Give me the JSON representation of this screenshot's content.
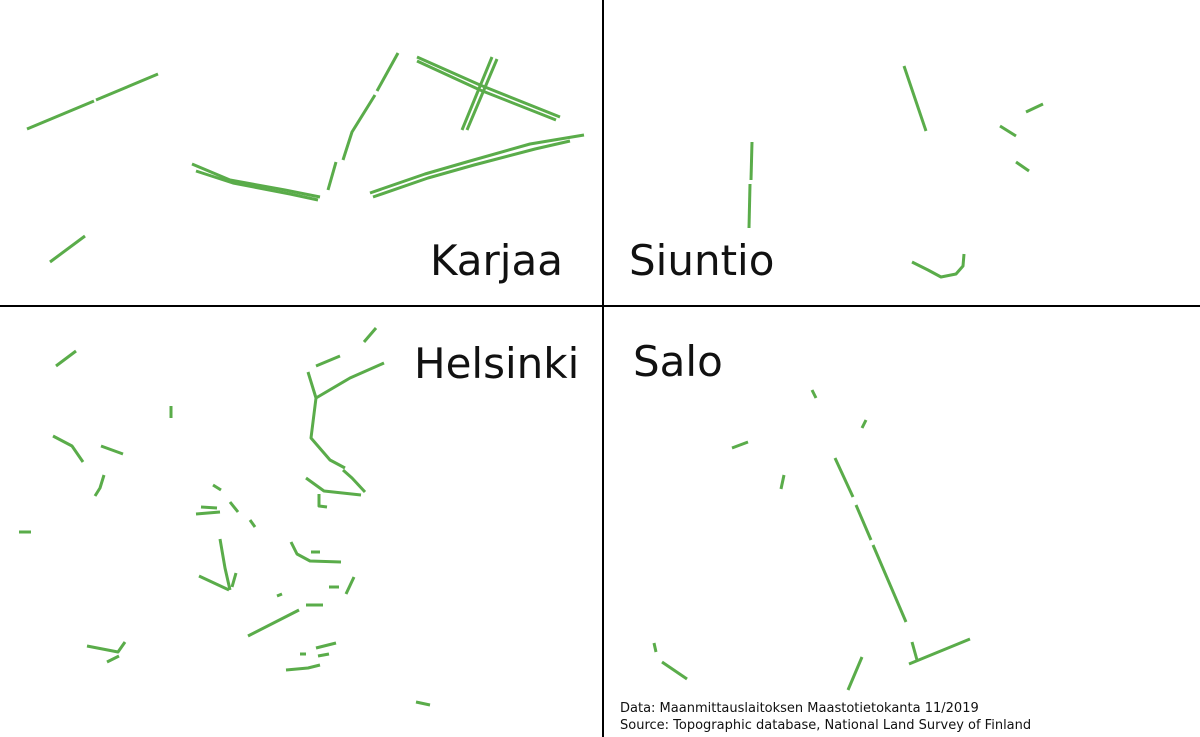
{
  "panels": [
    {
      "name": "Karjaa"
    },
    {
      "name": "Siuntio"
    },
    {
      "name": "Helsinki"
    },
    {
      "name": "Salo"
    }
  ],
  "credit": {
    "line1": "Data: Maanmittauslaitoksen Maastotietokanta 11/2019",
    "line2": "Source: Topographic database, National Land Survey of Finland"
  },
  "colors": {
    "feature": "#5aac4a",
    "divider": "#000000",
    "background": "#ffffff"
  }
}
